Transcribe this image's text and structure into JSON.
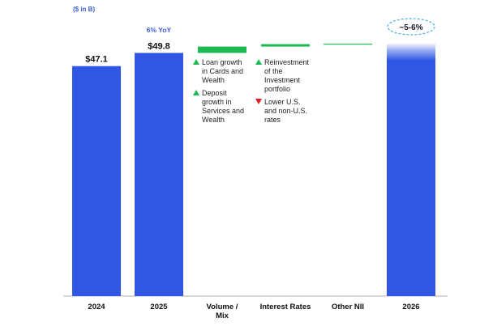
{
  "chart_data": {
    "type": "bar",
    "subtype": "waterfall",
    "unit_label": "($ in B)",
    "categories": [
      "2024",
      "2025",
      "Volume /\nMix",
      "Interest Rates",
      "Other NII",
      "2026"
    ],
    "values": [
      47.1,
      49.8,
      1.3,
      0.5,
      0.1,
      null
    ],
    "value_labels": [
      "$47.1",
      "$49.8",
      "",
      "",
      "",
      ""
    ],
    "yoy_label": "6% YoY",
    "target_label": "~5-6%",
    "annotations": {
      "volume_mix": [
        {
          "marker": "up",
          "text": "Loan growth in Cards and Wealth"
        },
        {
          "marker": "up",
          "text": "Deposit growth in Services and Wealth"
        }
      ],
      "interest_rates": [
        {
          "marker": "up",
          "text": "Reinvestment of the Investment portfolio"
        },
        {
          "marker": "down",
          "text": "Lower U.S. and non-U.S. rates"
        }
      ]
    },
    "ylim": [
      0,
      56
    ],
    "grid": false,
    "colors": {
      "total": "#2f57e3",
      "increase": "#1db954",
      "up_marker": "#1db954",
      "down_marker": "#e02020",
      "yoy": "#3b5bd6",
      "badge_border": "#4aaee0"
    }
  }
}
